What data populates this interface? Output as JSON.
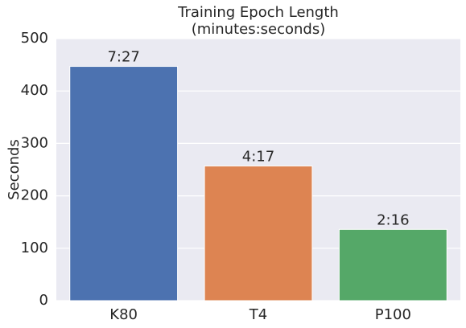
{
  "chart_data": {
    "type": "bar",
    "title": "Training Epoch Length",
    "subtitle": "(minutes:seconds)",
    "y_label": "Seconds",
    "categories": [
      "K80",
      "T4",
      "P100"
    ],
    "values": [
      447,
      257,
      136
    ],
    "value_labels": [
      "7:27",
      "4:17",
      "2:16"
    ],
    "colors": [
      "#4c72b0",
      "#dd8452",
      "#55a868"
    ],
    "ylim": [
      0,
      500
    ],
    "yticks": [
      0,
      100,
      200,
      300,
      400,
      500
    ],
    "grid": true
  }
}
